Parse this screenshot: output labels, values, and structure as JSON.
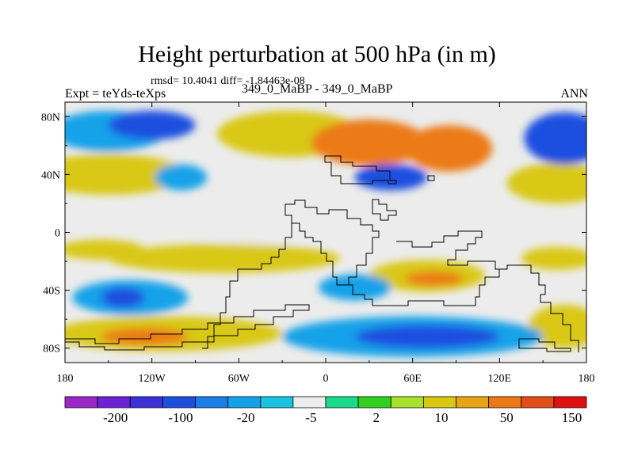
{
  "chart_data": {
    "type": "heatmap",
    "title": "Height perturbation at 500 hPa (in m)",
    "stats_text": "rmsd= 10.4041 diff= -1.84463e-08",
    "left_label": "Expt = teYds-teXps",
    "center_label": "349_0_MaBP - 349_0_MaBP",
    "right_label": "ANN",
    "x_range": [
      -180,
      180
    ],
    "y_range": [
      -90,
      90
    ],
    "x_ticks": [
      {
        "value": -180,
        "label": "180"
      },
      {
        "value": -120,
        "label": "120W"
      },
      {
        "value": -60,
        "label": "60W"
      },
      {
        "value": 0,
        "label": "0"
      },
      {
        "value": 60,
        "label": "60E"
      },
      {
        "value": 120,
        "label": "120E"
      },
      {
        "value": 180,
        "label": "180"
      }
    ],
    "y_ticks": [
      {
        "value": 80,
        "label": "80N"
      },
      {
        "value": 40,
        "label": "40N"
      },
      {
        "value": 0,
        "label": "0"
      },
      {
        "value": -40,
        "label": "40S"
      },
      {
        "value": -80,
        "label": "80S"
      }
    ],
    "colorbar": {
      "colors": [
        "#9b27c8",
        "#6d21d6",
        "#3b2fd8",
        "#1c4fe0",
        "#1a7dea",
        "#12a2e8",
        "#19c3e4",
        "#ececec",
        "#18dc8c",
        "#31cf20",
        "#a8e22a",
        "#d9c812",
        "#e8a412",
        "#ec7a14",
        "#e34d18",
        "#e01010"
      ],
      "labels": [
        {
          "after_box": 2,
          "label": "-200"
        },
        {
          "after_box": 4,
          "label": "-100"
        },
        {
          "after_box": 6,
          "label": "-20"
        },
        {
          "after_box": 8,
          "label": "-5"
        },
        {
          "after_box": 10,
          "label": "2"
        },
        {
          "after_box": 12,
          "label": "10"
        },
        {
          "after_box": 14,
          "label": "50"
        },
        {
          "after_box": 16,
          "label": "150"
        }
      ]
    },
    "field_features": [
      {
        "lon": -25,
        "lat": 68,
        "rx": 50,
        "ry": 16,
        "value": 15
      },
      {
        "lon": 30,
        "lat": 62,
        "rx": 40,
        "ry": 16,
        "value": 50
      },
      {
        "lon": 85,
        "lat": 58,
        "rx": 30,
        "ry": 16,
        "value": 50
      },
      {
        "lon": -150,
        "lat": 70,
        "rx": 40,
        "ry": 14,
        "value": -20
      },
      {
        "lon": -120,
        "lat": 74,
        "rx": 30,
        "ry": 10,
        "value": -100
      },
      {
        "lon": 165,
        "lat": 65,
        "rx": 28,
        "ry": 18,
        "value": -100
      },
      {
        "lon": 45,
        "lat": 38,
        "rx": 25,
        "ry": 9,
        "value": -100
      },
      {
        "lon": -100,
        "lat": 38,
        "rx": 18,
        "ry": 9,
        "value": -20
      },
      {
        "lon": -150,
        "lat": 40,
        "rx": 55,
        "ry": 14,
        "value": 10
      },
      {
        "lon": 160,
        "lat": 34,
        "rx": 35,
        "ry": 14,
        "value": 10
      },
      {
        "lon": -45,
        "lat": 10,
        "rx": 60,
        "ry": 18,
        "value": -5
      },
      {
        "lon": 15,
        "lat": 5,
        "rx": 25,
        "ry": 12,
        "value": -5
      },
      {
        "lon": -155,
        "lat": -12,
        "rx": 30,
        "ry": 7,
        "value": 10
      },
      {
        "lon": -70,
        "lat": -18,
        "rx": 80,
        "ry": 10,
        "value": 10
      },
      {
        "lon": 160,
        "lat": -18,
        "rx": 25,
        "ry": 8,
        "value": 10
      },
      {
        "lon": 70,
        "lat": -30,
        "rx": 40,
        "ry": 11,
        "value": 10
      },
      {
        "lon": 75,
        "lat": -32,
        "rx": 20,
        "ry": 5,
        "value": 50
      },
      {
        "lon": -135,
        "lat": -45,
        "rx": 40,
        "ry": 12,
        "value": -20
      },
      {
        "lon": -140,
        "lat": -45,
        "rx": 15,
        "ry": 7,
        "value": -100
      },
      {
        "lon": 20,
        "lat": -38,
        "rx": 25,
        "ry": 9,
        "value": -20
      },
      {
        "lon": 60,
        "lat": -72,
        "rx": 90,
        "ry": 14,
        "value": -20
      },
      {
        "lon": 70,
        "lat": -72,
        "rx": 50,
        "ry": 8,
        "value": -100
      },
      {
        "lon": -110,
        "lat": -70,
        "rx": 80,
        "ry": 12,
        "value": 10
      },
      {
        "lon": -125,
        "lat": -72,
        "rx": 30,
        "ry": 6,
        "value": 50
      },
      {
        "lon": 165,
        "lat": -65,
        "rx": 25,
        "ry": 15,
        "value": 10
      }
    ]
  }
}
